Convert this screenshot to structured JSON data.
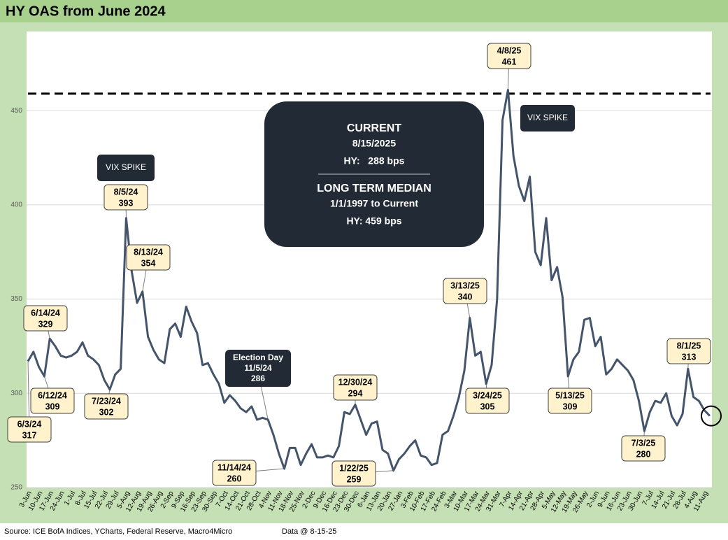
{
  "chart_data": {
    "type": "line",
    "title": "HY OAS from June 2024",
    "categories": [
      "3-Jun",
      null,
      "10-Jun",
      null,
      "17-Jun",
      null,
      "24-Jun",
      null,
      "1-Jul",
      null,
      "8-Jul",
      null,
      "15-Jul",
      null,
      "22-Jul",
      null,
      "29-Jul",
      null,
      "5-Aug",
      null,
      "12-Aug",
      null,
      "19-Aug",
      null,
      "26-Aug",
      null,
      "2-Sep",
      null,
      "9-Sep",
      null,
      "16-Sep",
      null,
      "23-Sep",
      null,
      "30-Sep",
      null,
      "7-Oct",
      null,
      "14-Oct",
      null,
      "21-Oct",
      null,
      "28-Oct",
      null,
      "4-Nov",
      null,
      "11-Nov",
      null,
      "18-Nov",
      null,
      "25-Nov",
      null,
      "2-Dec",
      null,
      "9-Dec",
      null,
      "16-Dec",
      null,
      "23-Dec",
      null,
      "30-Dec",
      null,
      "6-Jan",
      null,
      "13-Jan",
      null,
      "20-Jan",
      null,
      "27-Jan",
      null,
      "3-Feb",
      null,
      "10-Feb",
      null,
      "17-Feb",
      null,
      "24-Feb",
      null,
      "3-Mar",
      null,
      "10-Mar",
      null,
      "17-Mar",
      null,
      "24-Mar",
      null,
      "31-Mar",
      null,
      "7-Apr",
      null,
      "14-Apr",
      null,
      "21-Apr",
      null,
      "28-Apr",
      null,
      "5-May",
      null,
      "12-May",
      null,
      "19-May",
      null,
      "26-May",
      null,
      "2-Jun",
      null,
      "9-Jun",
      null,
      "16-Jun",
      null,
      "23-Jun",
      null,
      "30-Jun",
      null,
      "7-Jul",
      null,
      "14-Jul",
      null,
      "21-Jul",
      null,
      "28-Jul",
      null,
      "4-Aug",
      null,
      "11-Aug",
      null
    ],
    "values": [
      317,
      322,
      314,
      309,
      329,
      325,
      320,
      319,
      320,
      322,
      327,
      320,
      318,
      315,
      307,
      302,
      310,
      313,
      393,
      365,
      348,
      354,
      330,
      323,
      318,
      316,
      334,
      337,
      330,
      346,
      338,
      332,
      315,
      316,
      310,
      305,
      295,
      299,
      296,
      292,
      290,
      293,
      286,
      287,
      286,
      278,
      268,
      260,
      271,
      271,
      262,
      268,
      273,
      266,
      266,
      267,
      266,
      272,
      290,
      289,
      294,
      286,
      278,
      284,
      285,
      270,
      268,
      259,
      265,
      268,
      272,
      275,
      267,
      266,
      262,
      263,
      278,
      280,
      288,
      298,
      312,
      340,
      320,
      322,
      305,
      315,
      350,
      445,
      461,
      426,
      410,
      402,
      415,
      375,
      368,
      393,
      360,
      367,
      351,
      309,
      318,
      322,
      339,
      340,
      325,
      330,
      310,
      313,
      318,
      315,
      312,
      307,
      296,
      280,
      290,
      296,
      295,
      300,
      288,
      283,
      289,
      313,
      298,
      296,
      291,
      288
    ],
    "color": "#44546a",
    "ylim": [
      250,
      492
    ],
    "yticks": [
      250,
      300,
      350,
      400,
      450
    ],
    "grid": true,
    "median_line": 459,
    "point_dates": [
      "6/3/24",
      "6/12/24",
      "6/14/24",
      "7/23/24",
      "8/5/24",
      "8/13/24",
      "11/14/24",
      "12/30/24",
      "1/22/25",
      "3/13/25",
      "3/24/25",
      "4/8/25",
      "5/13/25",
      "7/3/25",
      "8/1/25"
    ],
    "election": {
      "title": "Election Day",
      "date": "11/5/24"
    },
    "spike_labels": [
      "VIX SPIKE",
      "VIX SPIKE"
    ],
    "info_box": {
      "current_title": "CURRENT",
      "current_date": "8/15/2025",
      "current_value": "HY:   288 bps",
      "median_title": "LONG TERM MEDIAN",
      "median_period": "1/1/1997 to Current",
      "median_value": "HY: 459 bps"
    },
    "source": "Source: ICE BofA Indices, YCharts, Federal Reserve, Macro4Micro",
    "data_note": "Data @ 8-15-25"
  }
}
